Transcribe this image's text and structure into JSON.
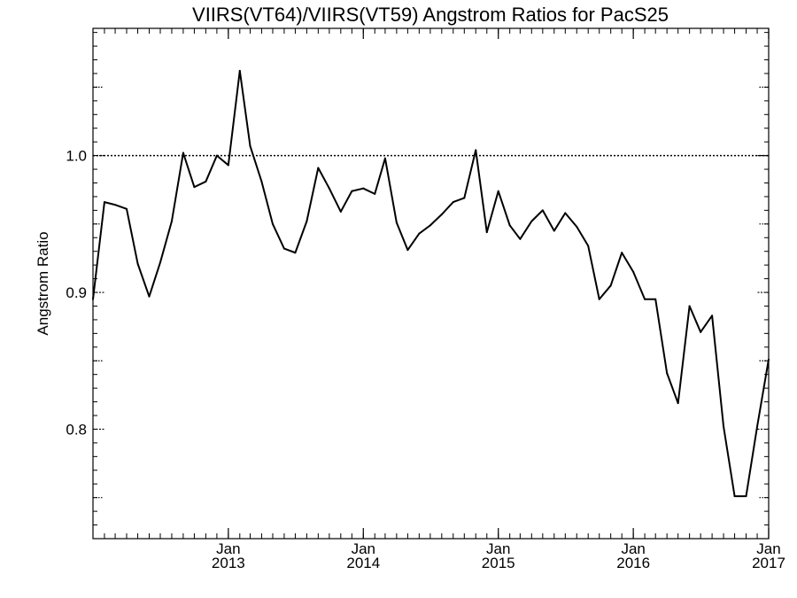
{
  "chart_data": {
    "type": "line",
    "title": "VIIRS(VT64)/VIIRS(VT59)  Angstrom Ratios for PacS25",
    "xlabel": "",
    "ylabel": "Angstrom Ratio",
    "xlim": [
      "2012-01-01",
      "2017-01-01"
    ],
    "ylim": [
      0.72,
      1.093
    ],
    "y_ticks": [
      {
        "value": 0.8,
        "label": "0.8"
      },
      {
        "value": 0.9,
        "label": "0.9"
      },
      {
        "value": 1.0,
        "label": "1.0"
      }
    ],
    "y_minor_ticks": [
      0.75,
      0.85,
      0.95,
      1.05
    ],
    "x_ticks": [
      {
        "date": "2013-01-01",
        "label_top": "Jan",
        "label_bottom": "2013"
      },
      {
        "date": "2014-01-01",
        "label_top": "Jan",
        "label_bottom": "2014"
      },
      {
        "date": "2015-01-01",
        "label_top": "Jan",
        "label_bottom": "2015"
      },
      {
        "date": "2016-01-01",
        "label_top": "Jan",
        "label_bottom": "2016"
      },
      {
        "date": "2017-01-01",
        "label_top": "Jan",
        "label_bottom": "2017"
      }
    ],
    "reference_line": {
      "y": 1.0,
      "style": "dotted"
    },
    "grid": false,
    "series": [
      {
        "color": "#000000",
        "x": [
          "2012-01-01",
          "2012-02-01",
          "2012-03-01",
          "2012-04-01",
          "2012-05-01",
          "2012-06-01",
          "2012-07-01",
          "2012-08-01",
          "2012-09-01",
          "2012-10-01",
          "2012-11-01",
          "2012-12-01",
          "2013-01-01",
          "2013-02-01",
          "2013-03-01",
          "2013-04-01",
          "2013-05-01",
          "2013-06-01",
          "2013-07-01",
          "2013-08-01",
          "2013-09-01",
          "2013-10-01",
          "2013-11-01",
          "2013-12-01",
          "2014-01-01",
          "2014-02-01",
          "2014-03-01",
          "2014-04-01",
          "2014-05-01",
          "2014-06-01",
          "2014-07-01",
          "2014-08-01",
          "2014-09-01",
          "2014-10-01",
          "2014-11-01",
          "2014-12-01",
          "2015-01-01",
          "2015-02-01",
          "2015-03-01",
          "2015-04-01",
          "2015-05-01",
          "2015-06-01",
          "2015-07-01",
          "2015-08-01",
          "2015-09-01",
          "2015-10-01",
          "2015-11-01",
          "2015-12-01",
          "2016-01-01",
          "2016-02-01",
          "2016-03-01",
          "2016-04-01",
          "2016-05-01",
          "2016-06-01",
          "2016-07-01",
          "2016-08-01",
          "2016-09-01",
          "2016-10-01",
          "2016-11-01",
          "2016-12-01",
          "2017-01-01"
        ],
        "y": [
          0.895,
          0.966,
          0.964,
          0.961,
          0.921,
          0.897,
          0.922,
          0.952,
          1.002,
          0.977,
          0.981,
          1.0,
          0.993,
          1.062,
          1.007,
          0.981,
          0.95,
          0.932,
          0.929,
          0.952,
          0.991,
          0.976,
          0.959,
          0.974,
          0.976,
          0.972,
          0.998,
          0.951,
          0.931,
          0.943,
          0.949,
          0.957,
          0.966,
          0.969,
          1.004,
          0.944,
          0.974,
          0.949,
          0.939,
          0.952,
          0.96,
          0.945,
          0.958,
          0.948,
          0.934,
          0.895,
          0.905,
          0.929,
          0.915,
          0.895,
          0.895,
          0.841,
          0.819,
          0.89,
          0.871,
          0.883,
          0.802,
          0.751,
          0.751,
          0.802,
          0.851
        ]
      }
    ]
  }
}
